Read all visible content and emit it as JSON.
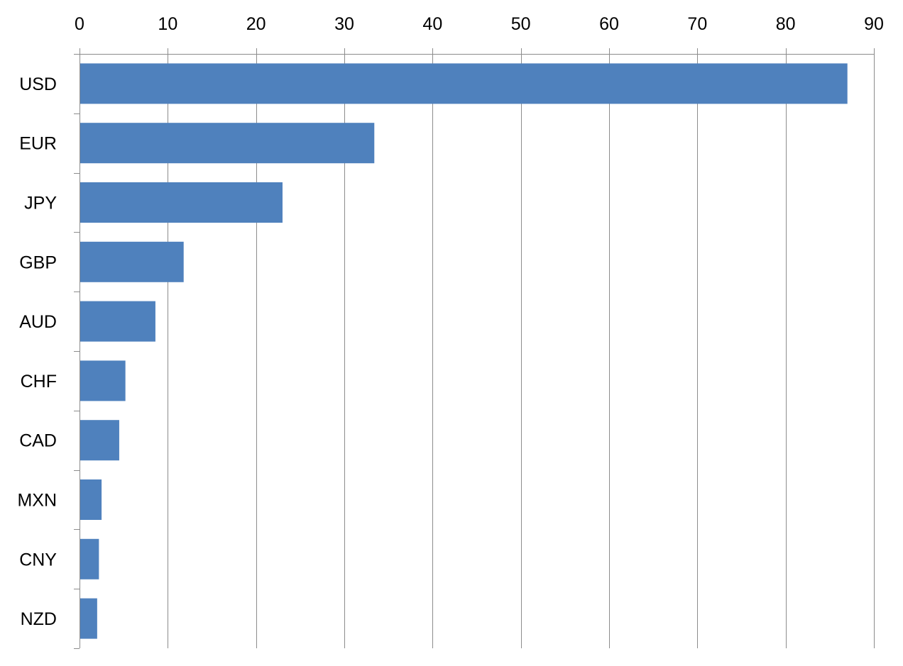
{
  "chart_data": {
    "type": "bar",
    "orientation": "horizontal",
    "title": "",
    "xlabel": "",
    "ylabel": "",
    "categories": [
      "USD",
      "EUR",
      "JPY",
      "GBP",
      "AUD",
      "CHF",
      "CAD",
      "MXN",
      "CNY",
      "NZD"
    ],
    "values": [
      87.0,
      33.4,
      23.0,
      11.8,
      8.6,
      5.2,
      4.5,
      2.5,
      2.2,
      2.0
    ],
    "xlim": [
      0,
      90
    ],
    "xticks": [
      "0",
      "10",
      "20",
      "30",
      "40",
      "50",
      "60",
      "70",
      "80",
      "90"
    ],
    "value_axis_position": "top",
    "grid": true,
    "legend": "none",
    "colors": {
      "bar": "#4f81bd",
      "grid": "#8c8c8c",
      "text": "#000000"
    }
  }
}
